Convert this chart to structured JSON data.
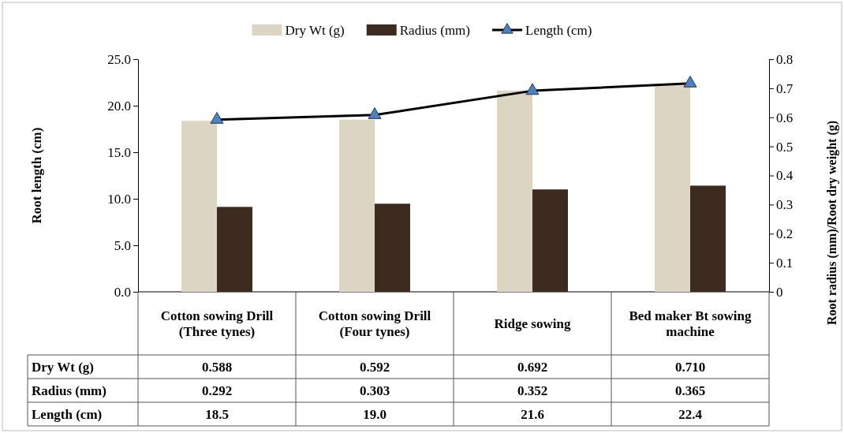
{
  "chart_data": {
    "type": "bar",
    "categories": [
      "Cotton sowing Drill (Three tynes)",
      "Cotton sowing Drill (Four tynes)",
      "Ridge sowing",
      "Bed maker Bt sowing machine"
    ],
    "series": [
      {
        "name": "Dry Wt (g)",
        "axis": "y2",
        "color": "#ddd5c3",
        "values": [
          0.588,
          0.592,
          0.692,
          0.71
        ],
        "value_labels": [
          "0.588",
          "0.592",
          "0.692",
          "0.710"
        ]
      },
      {
        "name": "Radius (mm)",
        "axis": "y2",
        "color": "#3d2b1f",
        "values": [
          0.292,
          0.303,
          0.352,
          0.365
        ],
        "value_labels": [
          "0.292",
          "0.303",
          "0.352",
          "0.365"
        ]
      },
      {
        "name": "Length (cm)",
        "type": "line",
        "color": "#000000",
        "values": [
          18.5,
          19.0,
          21.6,
          22.4
        ],
        "value_labels": [
          "18.5",
          "19.0",
          "21.6",
          "22.4"
        ]
      }
    ],
    "ylabel": "Root length (cm)",
    "y2label": "Root radius (mm)/Root dry weight (g)",
    "ylim": [
      0,
      25
    ],
    "yticks": [
      {
        "value": 0,
        "label": "0.0"
      },
      {
        "value": 5,
        "label": "5.0"
      },
      {
        "value": 10,
        "label": "10.0"
      },
      {
        "value": 15,
        "label": "15.0"
      },
      {
        "value": 20,
        "label": "20.0"
      },
      {
        "value": 25,
        "label": "25.0"
      }
    ],
    "y2lim": [
      0,
      0.8
    ],
    "y2ticks": [
      0,
      0.1,
      0.2,
      0.3,
      0.4,
      0.5,
      0.6,
      0.7,
      0.8
    ],
    "legend": "top",
    "marker": "triangle",
    "line_style": "solid"
  }
}
